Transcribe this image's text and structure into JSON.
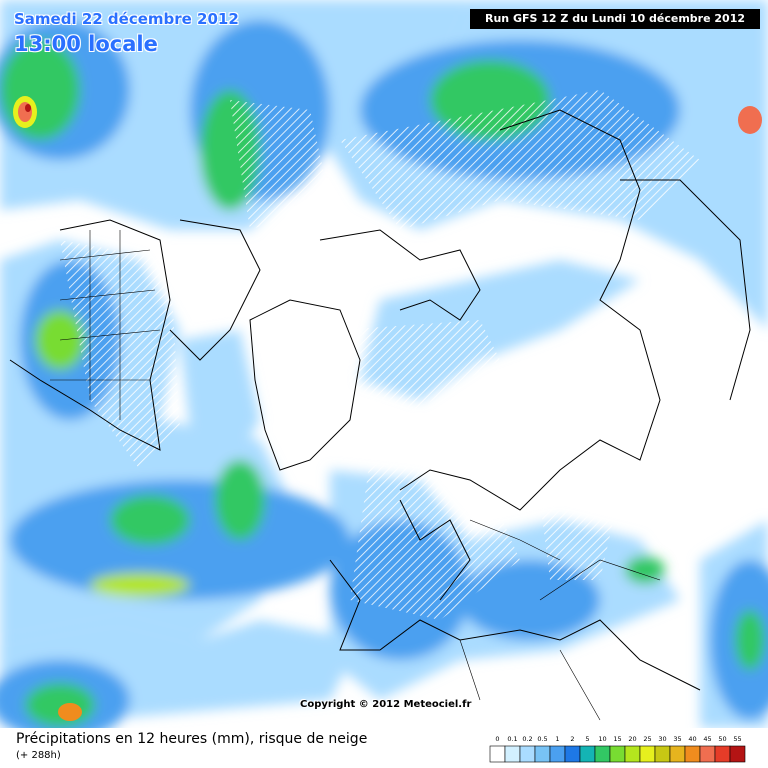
{
  "header": {
    "date": "Samedi 22 décembre 2012",
    "time": "13:00 locale",
    "run": "Run GFS 12 Z du Lundi 10 décembre 2012"
  },
  "copyright": "Copyright © 2012 Meteociel.fr",
  "caption": {
    "title": "Précipitations en 12 heures (mm), risque de neige",
    "lead": "(+ 288h)"
  },
  "legend": {
    "items": [
      {
        "label": "0",
        "color": "#ffffff"
      },
      {
        "label": "0.1",
        "color": "#d2f0ff"
      },
      {
        "label": "0.2",
        "color": "#aadcff"
      },
      {
        "label": "0.5",
        "color": "#78c3f5"
      },
      {
        "label": "1",
        "color": "#4ba0f0"
      },
      {
        "label": "2",
        "color": "#1e78e6"
      },
      {
        "label": "5",
        "color": "#14b4b4"
      },
      {
        "label": "10",
        "color": "#32c864"
      },
      {
        "label": "15",
        "color": "#78dc32"
      },
      {
        "label": "20",
        "color": "#b4e61e"
      },
      {
        "label": "25",
        "color": "#e6f01e"
      },
      {
        "label": "30",
        "color": "#c8c814"
      },
      {
        "label": "35",
        "color": "#e6b41e"
      },
      {
        "label": "40",
        "color": "#f08c1e"
      },
      {
        "label": "45",
        "color": "#f06e50"
      },
      {
        "label": "50",
        "color": "#e63c28"
      },
      {
        "label": "55",
        "color": "#b41414"
      }
    ]
  }
}
